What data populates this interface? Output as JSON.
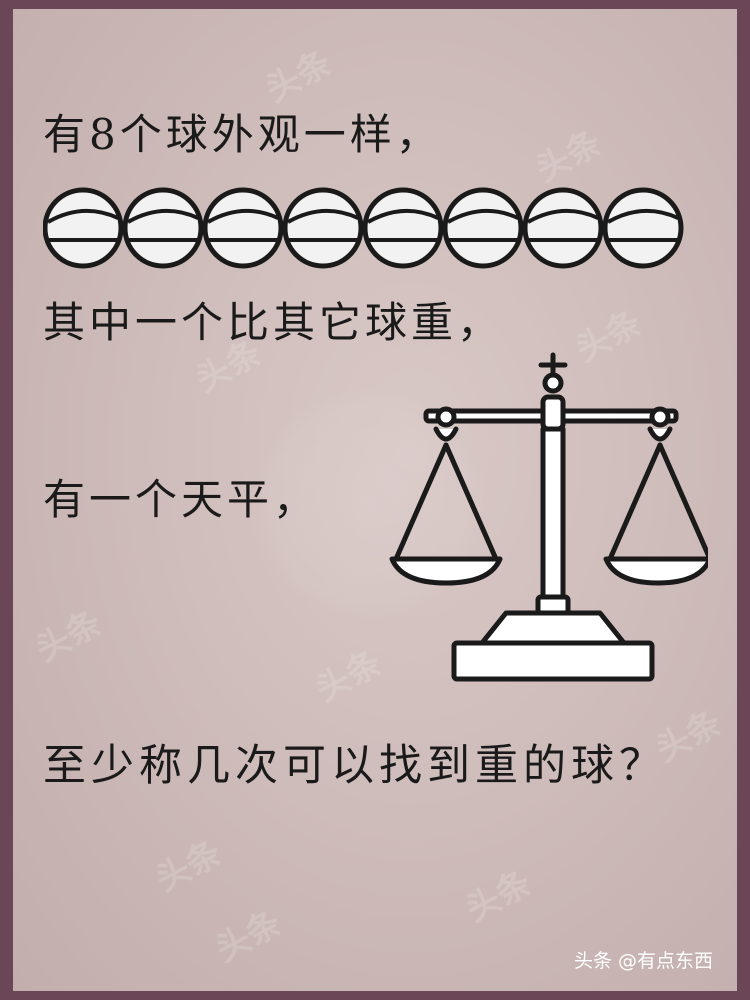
{
  "question": {
    "line1": "有8个球外观一样，",
    "line2": "其中一个比其它球重，",
    "line3": "有一个天平，",
    "line4": "至少称几次可以找到重的球？"
  },
  "balls": {
    "count": 8,
    "icon": "ball-icon"
  },
  "scale": {
    "icon": "balance-scale-icon"
  },
  "watermark": {
    "brand": "头条"
  },
  "footer": {
    "credit": "头条 @有点东西"
  },
  "colors": {
    "frame": "#6b4656",
    "background": "#d3c3c1",
    "ink": "#1a1a1a",
    "ball_fill": "#f2f2f2",
    "footer_text": "#ffffff"
  }
}
